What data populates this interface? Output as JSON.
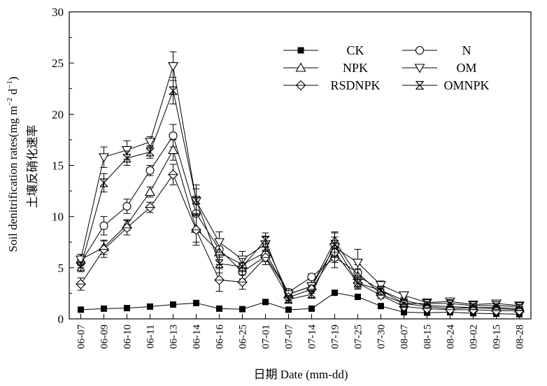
{
  "chart_data": {
    "type": "line",
    "ylabel_en": "Soil denitrification rates(mg m",
    "ylabel_sup1": "−2",
    "ylabel_mid": " d",
    "ylabel_sup2": "−1",
    "ylabel_end": ")",
    "ylabel_cn": "土壤反硝化速率",
    "xlabel": "日期 Date (mm-dd)",
    "ylim": [
      0,
      30
    ],
    "yticks": [
      "0",
      "5",
      "10",
      "15",
      "20",
      "25",
      "30"
    ],
    "categories": [
      "06-07",
      "06-09",
      "06-10",
      "06-11",
      "06-13",
      "06-14",
      "06-16",
      "06-25",
      "07-01",
      "07-07",
      "07-14",
      "07-19",
      "07-25",
      "07-30",
      "08-07",
      "08-15",
      "08-24",
      "09-02",
      "09-15",
      "08-28"
    ],
    "legend_position": "top-right",
    "series": [
      {
        "name": "CK",
        "marker": "square-filled",
        "values": [
          0.9,
          1.0,
          1.05,
          1.2,
          1.4,
          1.55,
          1.0,
          0.95,
          1.65,
          0.9,
          1.0,
          2.55,
          2.15,
          1.25,
          0.65,
          0.6,
          0.65,
          0.55,
          0.5,
          0.45
        ],
        "errors": [
          0,
          0,
          0,
          0,
          0,
          0,
          0,
          0,
          0,
          0,
          0,
          0,
          0,
          0,
          0,
          0,
          0,
          0,
          0,
          0
        ]
      },
      {
        "name": "N",
        "marker": "circle",
        "values": [
          5.5,
          9.1,
          11.0,
          14.5,
          17.9,
          10.3,
          6.8,
          4.6,
          6.1,
          2.6,
          4.1,
          6.0,
          4.5,
          2.4,
          1.5,
          1.2,
          1.0,
          1.1,
          1.0,
          0.9
        ],
        "errors": [
          0.5,
          0.9,
          0.7,
          0.5,
          1.1,
          1.5,
          0.8,
          0.7,
          0.5,
          0.3,
          0.3,
          1.0,
          0.8,
          0.4,
          0.3,
          0.2,
          0.2,
          0.2,
          0.2,
          0.2
        ]
      },
      {
        "name": "NPK",
        "marker": "triangle-up",
        "values": [
          5.8,
          7.0,
          9.2,
          12.4,
          16.5,
          8.8,
          6.5,
          5.3,
          6.5,
          2.4,
          3.2,
          7.6,
          4.2,
          2.8,
          1.8,
          1.3,
          1.2,
          1.1,
          1.1,
          1.0
        ],
        "errors": [
          0.5,
          0.7,
          0.5,
          0.5,
          1.0,
          1.3,
          1.2,
          0.7,
          0.6,
          0.3,
          0.3,
          0.8,
          0.7,
          0.4,
          0.3,
          0.2,
          0.2,
          0.2,
          0.2,
          0.2
        ]
      },
      {
        "name": "OM",
        "marker": "triangle-down",
        "values": [
          5.8,
          15.8,
          16.5,
          17.3,
          24.7,
          11.5,
          7.5,
          5.8,
          7.3,
          2.4,
          3.2,
          7.0,
          5.5,
          3.3,
          2.3,
          1.6,
          1.7,
          1.4,
          1.5,
          1.3
        ],
        "errors": [
          0.5,
          1.0,
          0.9,
          0.5,
          1.4,
          1.2,
          1.0,
          0.8,
          0.7,
          0.3,
          0.3,
          1.0,
          1.3,
          0.4,
          0.3,
          0.2,
          0.3,
          0.2,
          0.2,
          0.2
        ]
      },
      {
        "name": "RSDNPK",
        "marker": "diamond",
        "values": [
          3.4,
          6.8,
          8.9,
          10.9,
          14.1,
          8.7,
          3.8,
          3.6,
          6.0,
          2.1,
          2.9,
          6.5,
          3.5,
          2.3,
          1.2,
          1.0,
          0.9,
          0.9,
          0.8,
          0.8
        ],
        "errors": [
          0.6,
          0.8,
          0.7,
          0.5,
          1.0,
          1.5,
          1.1,
          0.7,
          0.7,
          0.3,
          0.4,
          1.0,
          0.5,
          0.3,
          0.2,
          0.2,
          0.2,
          0.2,
          0.2,
          0.2
        ]
      },
      {
        "name": "OMNPK",
        "marker": "x-box",
        "values": [
          5.1,
          13.3,
          15.7,
          16.3,
          22.3,
          11.6,
          5.4,
          5.1,
          7.7,
          1.9,
          2.4,
          7.3,
          3.5,
          2.8,
          1.5,
          1.5,
          1.5,
          1.3,
          1.3,
          1.2
        ],
        "errors": [
          0.5,
          0.9,
          0.7,
          0.6,
          1.3,
          1.5,
          0.9,
          0.8,
          0.7,
          0.3,
          0.3,
          1.2,
          0.6,
          0.4,
          0.3,
          0.2,
          0.3,
          0.2,
          0.2,
          0.2
        ]
      }
    ]
  }
}
